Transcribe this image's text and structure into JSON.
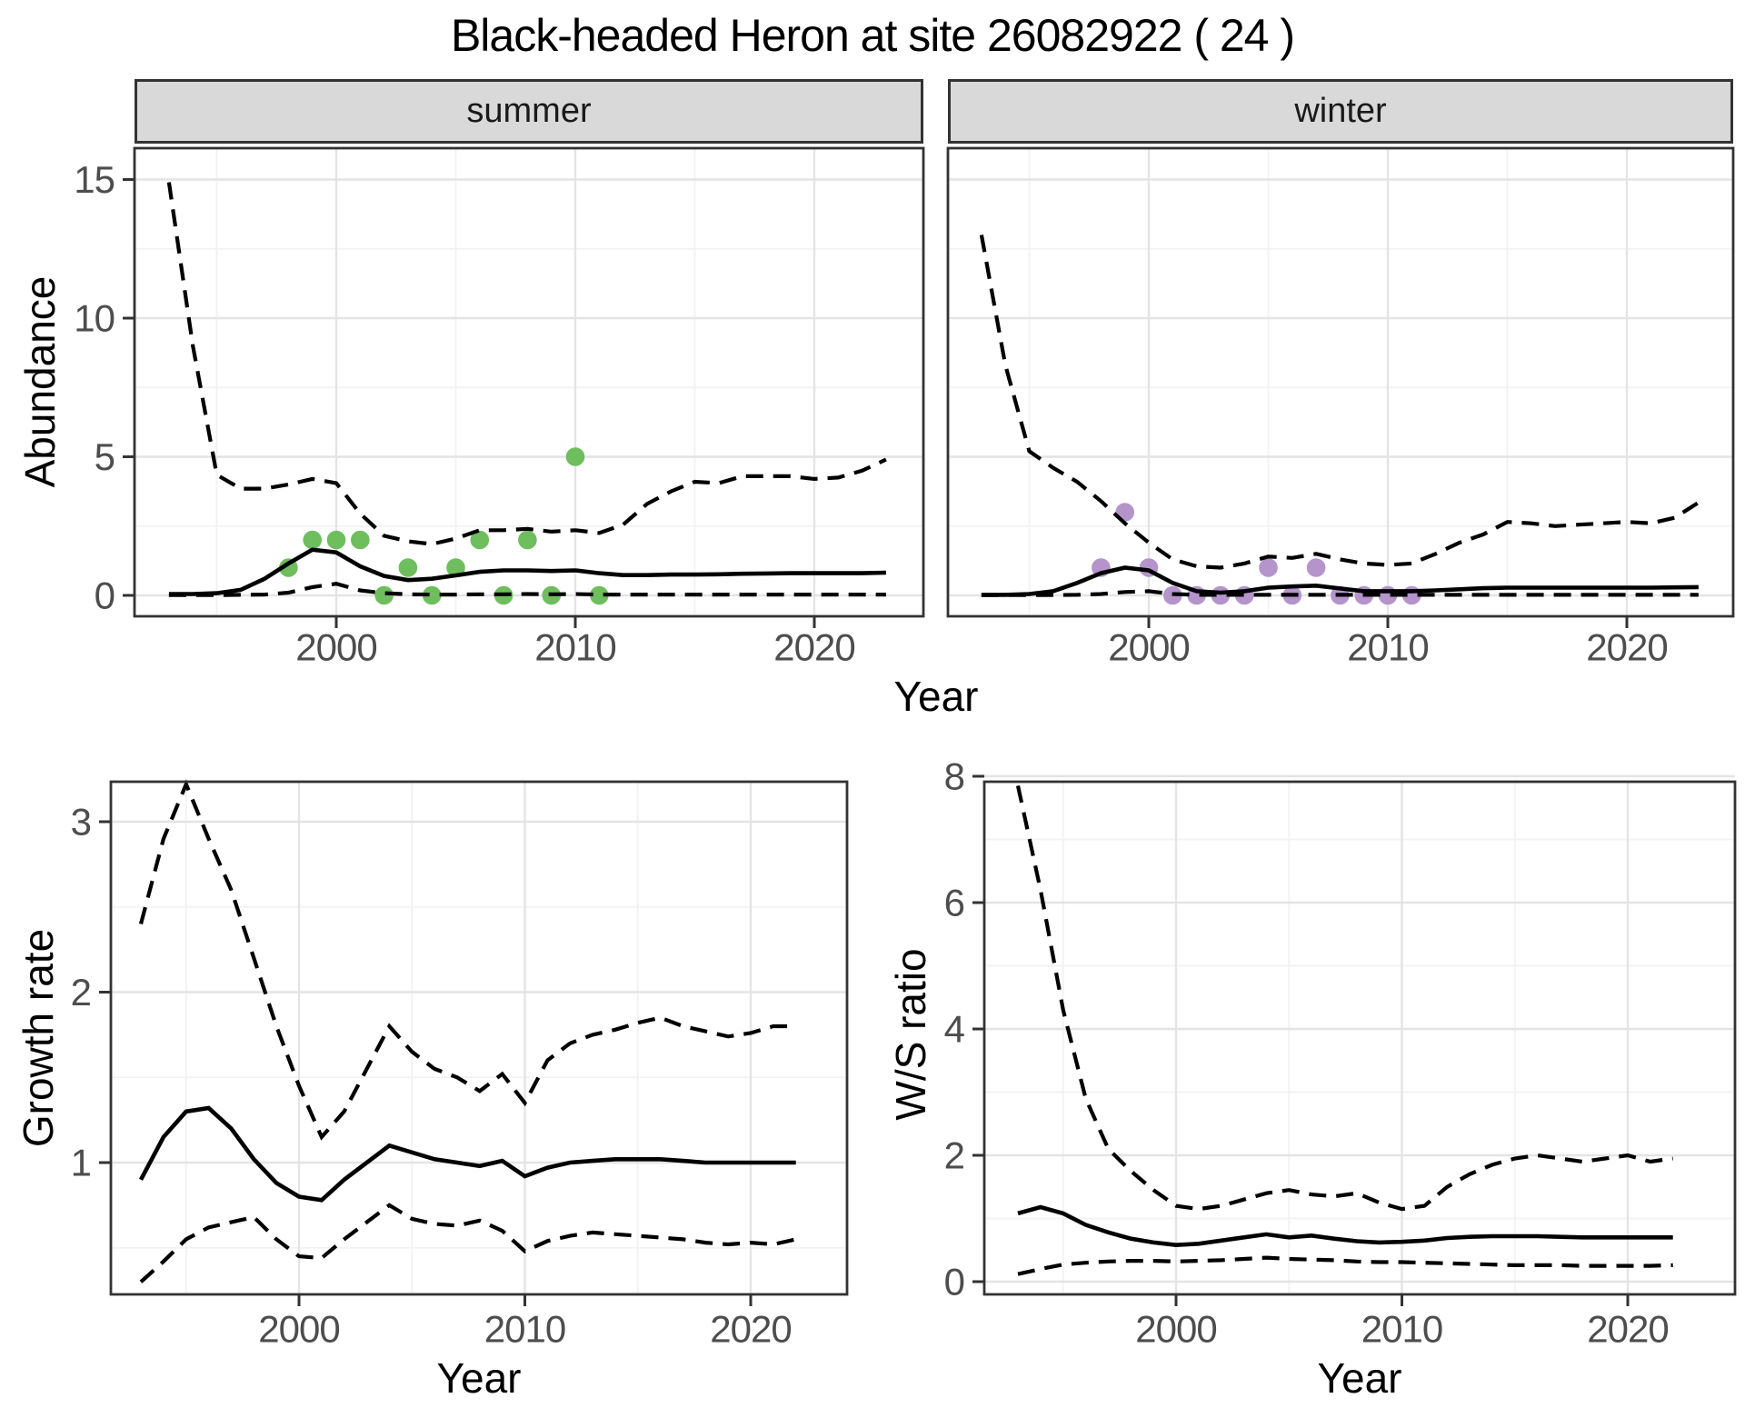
{
  "title": "Black-headed Heron at site 26082922 ( 24 )",
  "colors": {
    "strip_bg": "#d9d9d9",
    "panel_border": "#333333",
    "grid_major": "#e4e4e4",
    "grid_minor": "#f2f2f2",
    "tick_text": "#4d4d4d",
    "line": "#000000",
    "summer_points": "#6fbe5e",
    "winter_points": "#b494cb"
  },
  "chart_data": {
    "top": {
      "type": "line",
      "xlabel": "Year",
      "ylabel": "Abundance",
      "x_ticks": [
        2000,
        2010,
        2020
      ],
      "x_minor_ticks": [
        1995,
        2005,
        2015
      ],
      "x_tick_labels": [
        "2000",
        "2010",
        "2020"
      ],
      "y_ticks": [
        0,
        5,
        10,
        15
      ],
      "y_minor_ticks": [
        2.5,
        7.5,
        12.5
      ],
      "y_tick_labels": [
        "0",
        "5",
        "10",
        "15"
      ],
      "xlim": [
        1991.6,
        2024.4
      ],
      "ylim": [
        -0.75,
        16.1
      ],
      "grid": true,
      "legend": "none",
      "years": [
        1993,
        1994,
        1995,
        1996,
        1997,
        1998,
        1999,
        2000,
        2001,
        2002,
        2003,
        2004,
        2005,
        2006,
        2007,
        2008,
        2009,
        2010,
        2011,
        2012,
        2013,
        2014,
        2015,
        2016,
        2017,
        2018,
        2019,
        2020,
        2021,
        2022,
        2023
      ],
      "facets": [
        {
          "label": "summer",
          "point_color": "#6fbe5e",
          "points": {
            "years": [
              1998,
              1999,
              2000,
              2001,
              2002,
              2003,
              2004,
              2005,
              2006,
              2007,
              2008,
              2009,
              2010,
              2011
            ],
            "values": [
              1,
              2,
              2,
              2,
              0,
              1,
              0,
              1,
              2,
              0,
              2,
              0,
              5,
              0
            ]
          },
          "series": [
            {
              "name": "upper 95% CI",
              "style": "dashed",
              "values": [
                14.9,
                9.0,
                4.35,
                3.85,
                3.85,
                4.0,
                4.2,
                4.05,
                2.95,
                2.15,
                1.95,
                1.85,
                2.05,
                2.35,
                2.35,
                2.4,
                2.3,
                2.35,
                2.25,
                2.55,
                3.3,
                3.75,
                4.1,
                4.05,
                4.3,
                4.3,
                4.3,
                4.2,
                4.25,
                4.5,
                4.9
              ]
            },
            {
              "name": "median",
              "style": "solid",
              "values": [
                0.05,
                0.05,
                0.08,
                0.2,
                0.6,
                1.15,
                1.65,
                1.55,
                1.05,
                0.7,
                0.55,
                0.6,
                0.72,
                0.85,
                0.9,
                0.9,
                0.88,
                0.9,
                0.8,
                0.73,
                0.73,
                0.75,
                0.75,
                0.76,
                0.78,
                0.79,
                0.8,
                0.8,
                0.8,
                0.8,
                0.82
              ]
            },
            {
              "name": "lower 95% CI",
              "style": "dashed",
              "values": [
                0.01,
                0.01,
                0.01,
                0.02,
                0.03,
                0.1,
                0.3,
                0.42,
                0.18,
                0.08,
                0.04,
                0.03,
                0.03,
                0.04,
                0.04,
                0.05,
                0.04,
                0.05,
                0.03,
                0.03,
                0.03,
                0.03,
                0.03,
                0.03,
                0.03,
                0.03,
                0.03,
                0.03,
                0.03,
                0.03,
                0.03
              ]
            }
          ]
        },
        {
          "label": "winter",
          "point_color": "#b494cb",
          "points": {
            "years": [
              1998,
              1999,
              2000,
              2001,
              2002,
              2003,
              2004,
              2005,
              2006,
              2007,
              2008,
              2009,
              2010,
              2011
            ],
            "values": [
              1,
              3,
              1,
              0,
              0,
              0,
              0,
              1,
              0,
              1,
              0,
              0,
              0,
              0
            ]
          },
          "series": [
            {
              "name": "upper 95% CI",
              "style": "dashed",
              "values": [
                13.0,
                8.3,
                5.2,
                4.6,
                4.1,
                3.4,
                2.6,
                1.9,
                1.3,
                1.05,
                1.0,
                1.15,
                1.4,
                1.35,
                1.5,
                1.3,
                1.15,
                1.1,
                1.15,
                1.5,
                1.9,
                2.2,
                2.65,
                2.6,
                2.5,
                2.55,
                2.6,
                2.65,
                2.6,
                2.8,
                3.35
              ]
            },
            {
              "name": "median",
              "style": "solid",
              "values": [
                0.02,
                0.02,
                0.05,
                0.15,
                0.45,
                0.8,
                1.0,
                0.9,
                0.45,
                0.15,
                0.1,
                0.15,
                0.28,
                0.32,
                0.35,
                0.25,
                0.15,
                0.15,
                0.15,
                0.18,
                0.22,
                0.26,
                0.28,
                0.28,
                0.28,
                0.28,
                0.28,
                0.28,
                0.28,
                0.29,
                0.3
              ]
            },
            {
              "name": "lower 95% CI",
              "style": "dashed",
              "values": [
                0.01,
                0.01,
                0.01,
                0.01,
                0.02,
                0.05,
                0.12,
                0.15,
                0.05,
                0.02,
                0.02,
                0.02,
                0.02,
                0.02,
                0.02,
                0.02,
                0.02,
                0.02,
                0.02,
                0.02,
                0.02,
                0.02,
                0.02,
                0.02,
                0.02,
                0.02,
                0.02,
                0.02,
                0.02,
                0.02,
                0.02
              ]
            }
          ]
        }
      ]
    },
    "growth": {
      "type": "line",
      "xlabel": "Year",
      "ylabel": "Growth rate",
      "x_ticks": [
        2000,
        2010,
        2020
      ],
      "x_minor_ticks": [
        1995,
        2005,
        2015
      ],
      "x_tick_labels": [
        "2000",
        "2010",
        "2020"
      ],
      "y_ticks": [
        1,
        2,
        3
      ],
      "y_minor_ticks": [
        0.5,
        1.5,
        2.5
      ],
      "y_tick_labels": [
        "1",
        "2",
        "3"
      ],
      "xlim": [
        1991.7,
        2024.3
      ],
      "ylim": [
        0.22,
        3.23
      ],
      "grid": true,
      "years": [
        1993,
        1994,
        1995,
        1996,
        1997,
        1998,
        1999,
        2000,
        2001,
        2002,
        2003,
        2004,
        2005,
        2006,
        2007,
        2008,
        2009,
        2010,
        2011,
        2012,
        2013,
        2014,
        2015,
        2016,
        2017,
        2018,
        2019,
        2020,
        2021,
        2022
      ],
      "series": [
        {
          "name": "upper 95% CI",
          "style": "dashed",
          "values": [
            2.4,
            2.9,
            3.22,
            2.9,
            2.6,
            2.2,
            1.8,
            1.45,
            1.15,
            1.3,
            1.55,
            1.8,
            1.65,
            1.55,
            1.5,
            1.42,
            1.52,
            1.35,
            1.6,
            1.7,
            1.75,
            1.78,
            1.82,
            1.85,
            1.8,
            1.77,
            1.74,
            1.76,
            1.8,
            1.8
          ]
        },
        {
          "name": "median",
          "style": "solid",
          "values": [
            0.9,
            1.15,
            1.3,
            1.32,
            1.2,
            1.02,
            0.88,
            0.8,
            0.78,
            0.9,
            1.0,
            1.1,
            1.06,
            1.02,
            1.0,
            0.98,
            1.01,
            0.92,
            0.97,
            1.0,
            1.01,
            1.02,
            1.02,
            1.02,
            1.01,
            1.0,
            1.0,
            1.0,
            1.0,
            1.0
          ]
        },
        {
          "name": "lower 95% CI",
          "style": "dashed",
          "values": [
            0.3,
            0.42,
            0.55,
            0.62,
            0.65,
            0.68,
            0.55,
            0.45,
            0.44,
            0.55,
            0.65,
            0.75,
            0.67,
            0.64,
            0.63,
            0.66,
            0.6,
            0.48,
            0.54,
            0.57,
            0.59,
            0.58,
            0.57,
            0.56,
            0.55,
            0.53,
            0.52,
            0.53,
            0.52,
            0.55
          ]
        }
      ]
    },
    "ws": {
      "type": "line",
      "xlabel": "Year",
      "ylabel": "W/S ratio",
      "x_ticks": [
        2000,
        2010,
        2020
      ],
      "x_minor_ticks": [
        1995,
        2005,
        2015
      ],
      "x_tick_labels": [
        "2000",
        "2010",
        "2020"
      ],
      "y_ticks": [
        0,
        2,
        4,
        6,
        8
      ],
      "y_minor_ticks": [
        1,
        3,
        5,
        7
      ],
      "y_tick_labels": [
        "0",
        "2",
        "4",
        "6",
        "8"
      ],
      "xlim": [
        1991.7,
        2024.3
      ],
      "ylim": [
        -0.2,
        7.92
      ],
      "grid": true,
      "years": [
        1993,
        1994,
        1995,
        1996,
        1997,
        1998,
        1999,
        2000,
        2001,
        2002,
        2003,
        2004,
        2005,
        2006,
        2007,
        2008,
        2009,
        2010,
        2011,
        2012,
        2013,
        2014,
        2015,
        2016,
        2017,
        2018,
        2019,
        2020,
        2021,
        2022
      ],
      "series": [
        {
          "name": "upper 95% CI",
          "style": "dashed",
          "values": [
            7.85,
            6.2,
            4.3,
            2.9,
            2.1,
            1.75,
            1.45,
            1.2,
            1.15,
            1.2,
            1.3,
            1.4,
            1.45,
            1.38,
            1.35,
            1.4,
            1.25,
            1.15,
            1.2,
            1.5,
            1.7,
            1.85,
            1.95,
            2.0,
            1.95,
            1.9,
            1.95,
            2.0,
            1.9,
            1.95
          ]
        },
        {
          "name": "median",
          "style": "solid",
          "values": [
            1.08,
            1.18,
            1.08,
            0.9,
            0.78,
            0.68,
            0.62,
            0.58,
            0.6,
            0.65,
            0.7,
            0.75,
            0.7,
            0.73,
            0.68,
            0.64,
            0.62,
            0.63,
            0.65,
            0.69,
            0.71,
            0.72,
            0.72,
            0.72,
            0.71,
            0.7,
            0.7,
            0.7,
            0.7,
            0.7
          ]
        },
        {
          "name": "lower 95% CI",
          "style": "dashed",
          "values": [
            0.12,
            0.2,
            0.27,
            0.3,
            0.32,
            0.33,
            0.33,
            0.32,
            0.33,
            0.34,
            0.36,
            0.38,
            0.36,
            0.35,
            0.34,
            0.32,
            0.31,
            0.31,
            0.3,
            0.29,
            0.28,
            0.27,
            0.26,
            0.26,
            0.26,
            0.25,
            0.25,
            0.25,
            0.25,
            0.26
          ]
        }
      ]
    }
  }
}
